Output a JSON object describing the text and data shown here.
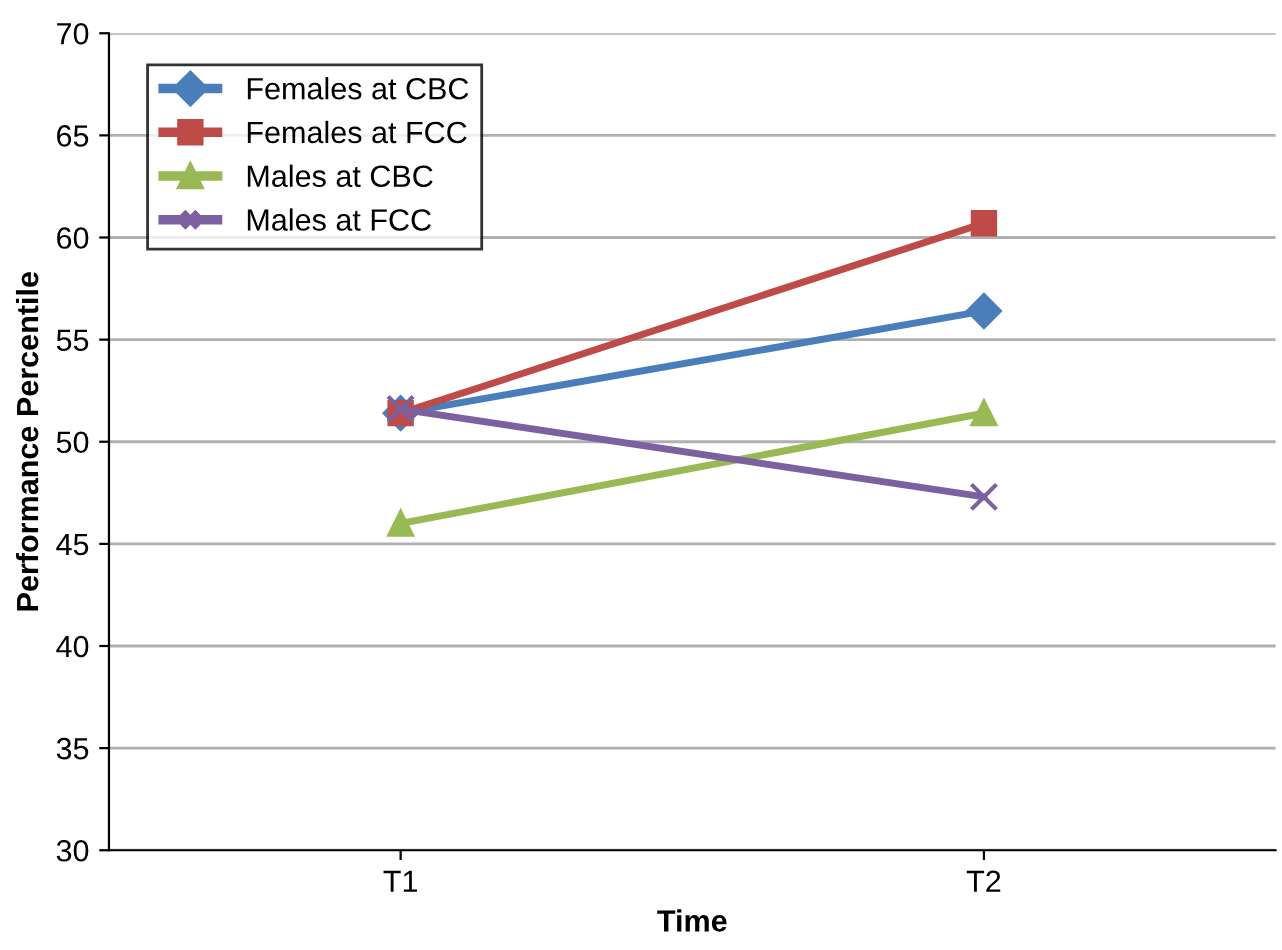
{
  "chart_data": {
    "type": "line",
    "xlabel": "Time",
    "ylabel": "Performance Percentile",
    "categories": [
      "T1",
      "T2"
    ],
    "series": [
      {
        "name": "Females at CBC",
        "color": "#4a7ebb",
        "marker": "diamond",
        "values": [
          51.4,
          56.4
        ]
      },
      {
        "name": "Females at FCC",
        "color": "#be4b48",
        "marker": "square",
        "values": [
          51.4,
          60.7
        ]
      },
      {
        "name": "Males at CBC",
        "color": "#98b954",
        "marker": "triangle",
        "values": [
          46.0,
          51.4
        ]
      },
      {
        "name": "Males at FCC",
        "color": "#7d60a0",
        "marker": "cross",
        "values": [
          51.6,
          47.3
        ]
      }
    ],
    "ylim": [
      30,
      70
    ],
    "yticks": [
      30,
      35,
      40,
      45,
      50,
      55,
      60,
      65,
      70
    ],
    "grid": "y",
    "legend": "top left"
  }
}
